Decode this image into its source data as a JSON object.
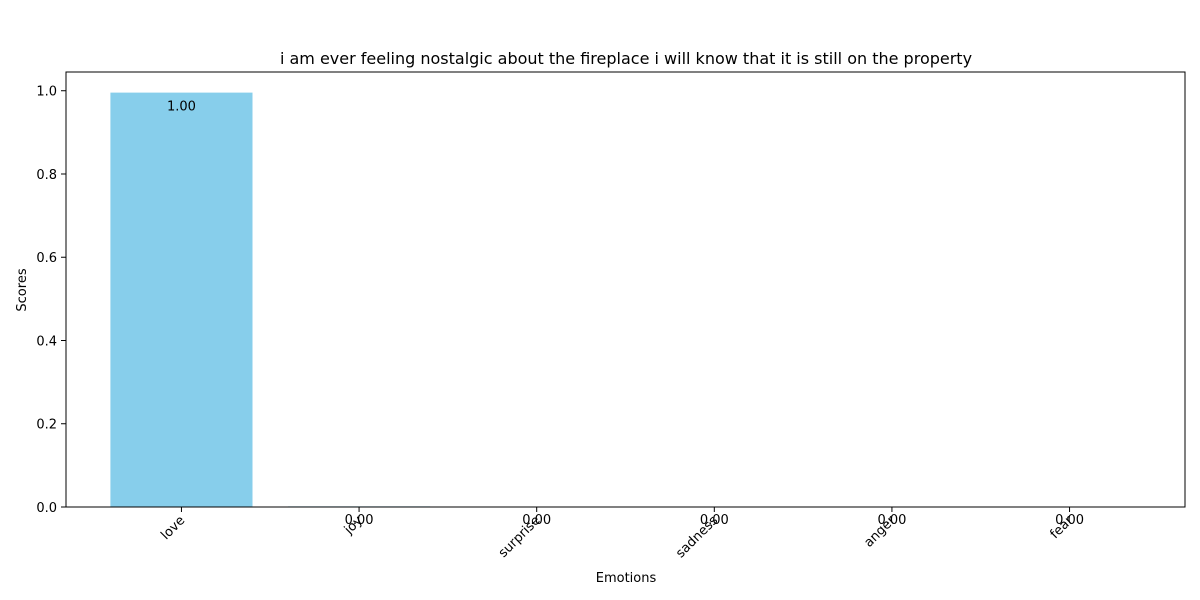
{
  "chart_data": {
    "type": "bar",
    "title": "i am ever feeling nostalgic about the fireplace i will know that it is still on the property",
    "xlabel": "Emotions",
    "ylabel": "Scores",
    "categories": [
      "love",
      "joy",
      "surprise",
      "sadness",
      "anger",
      "fear"
    ],
    "values": [
      0.9955,
      0.0015,
      0.0012,
      0.0009,
      0.0005,
      0.0004
    ],
    "value_labels": [
      "1.00",
      "0.00",
      "0.00",
      "0.00",
      "0.00",
      "0.00"
    ],
    "ylim": [
      0,
      1.045
    ],
    "yticks": [
      0.0,
      0.2,
      0.4,
      0.6,
      0.8,
      1.0
    ],
    "ytick_labels": [
      "0.0",
      "0.2",
      "0.4",
      "0.6",
      "0.8",
      "1.0"
    ],
    "bar_color": "#87ceeb",
    "grid": false
  }
}
